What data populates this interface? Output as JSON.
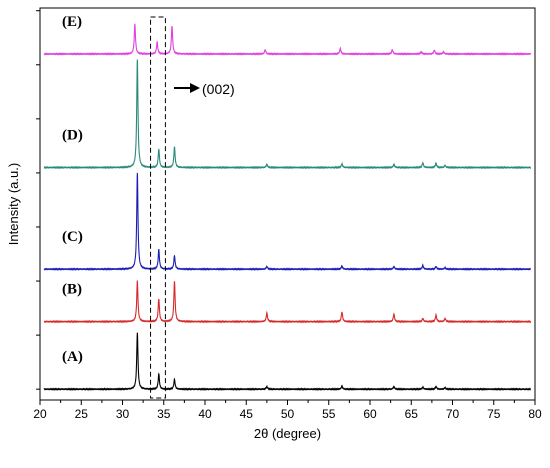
{
  "chart_data": {
    "type": "line",
    "title": "",
    "xlabel": "2θ (degree)",
    "ylabel": "Intensity (a.u.)",
    "xlim": [
      20,
      80
    ],
    "ylim": [
      0,
      7.25
    ],
    "x_ticks": [
      20,
      25,
      30,
      35,
      40,
      45,
      50,
      55,
      60,
      65,
      70,
      75,
      80
    ],
    "grid": false,
    "legend": "none",
    "series": [
      {
        "name": "(A)",
        "color": "#000000",
        "baseline": 0.2,
        "peaks": [
          [
            31.8,
            1.05
          ],
          [
            34.4,
            0.28
          ],
          [
            36.3,
            0.18
          ],
          [
            47.5,
            0.05
          ],
          [
            56.6,
            0.06
          ],
          [
            62.9,
            0.05
          ],
          [
            66.4,
            0.04
          ],
          [
            68.0,
            0.05
          ],
          [
            69.1,
            0.03
          ]
        ]
      },
      {
        "name": "(B)",
        "color": "#d42a2a",
        "baseline": 1.45,
        "peaks": [
          [
            31.8,
            0.75
          ],
          [
            34.4,
            0.42
          ],
          [
            36.3,
            0.75
          ],
          [
            47.5,
            0.16
          ],
          [
            56.6,
            0.18
          ],
          [
            62.9,
            0.14
          ],
          [
            66.4,
            0.06
          ],
          [
            68.0,
            0.12
          ],
          [
            69.1,
            0.06
          ]
        ]
      },
      {
        "name": "(C)",
        "color": "#1c1cb4",
        "baseline": 2.42,
        "peaks": [
          [
            31.8,
            1.78
          ],
          [
            34.4,
            0.36
          ],
          [
            36.3,
            0.25
          ],
          [
            47.5,
            0.05
          ],
          [
            56.6,
            0.06
          ],
          [
            62.9,
            0.05
          ],
          [
            66.4,
            0.07
          ],
          [
            68.0,
            0.05
          ],
          [
            69.1,
            0.03
          ]
        ]
      },
      {
        "name": "(D)",
        "color": "#2a8a7c",
        "baseline": 4.3,
        "peaks": [
          [
            31.8,
            2.0
          ],
          [
            34.4,
            0.34
          ],
          [
            36.3,
            0.38
          ],
          [
            47.5,
            0.06
          ],
          [
            56.6,
            0.07
          ],
          [
            62.9,
            0.06
          ],
          [
            66.4,
            0.09
          ],
          [
            68.0,
            0.08
          ],
          [
            69.1,
            0.04
          ]
        ]
      },
      {
        "name": "(E)",
        "color": "#e040e0",
        "baseline": 6.4,
        "peaks": [
          [
            31.5,
            0.55
          ],
          [
            34.2,
            0.22
          ],
          [
            36.0,
            0.52
          ],
          [
            47.3,
            0.08
          ],
          [
            56.4,
            0.1
          ],
          [
            62.7,
            0.08
          ],
          [
            66.2,
            0.04
          ],
          [
            67.8,
            0.07
          ],
          [
            68.9,
            0.04
          ]
        ]
      }
    ],
    "annotations": [
      {
        "text": "(002)",
        "x_range": [
          33.4,
          35.2
        ]
      }
    ]
  }
}
